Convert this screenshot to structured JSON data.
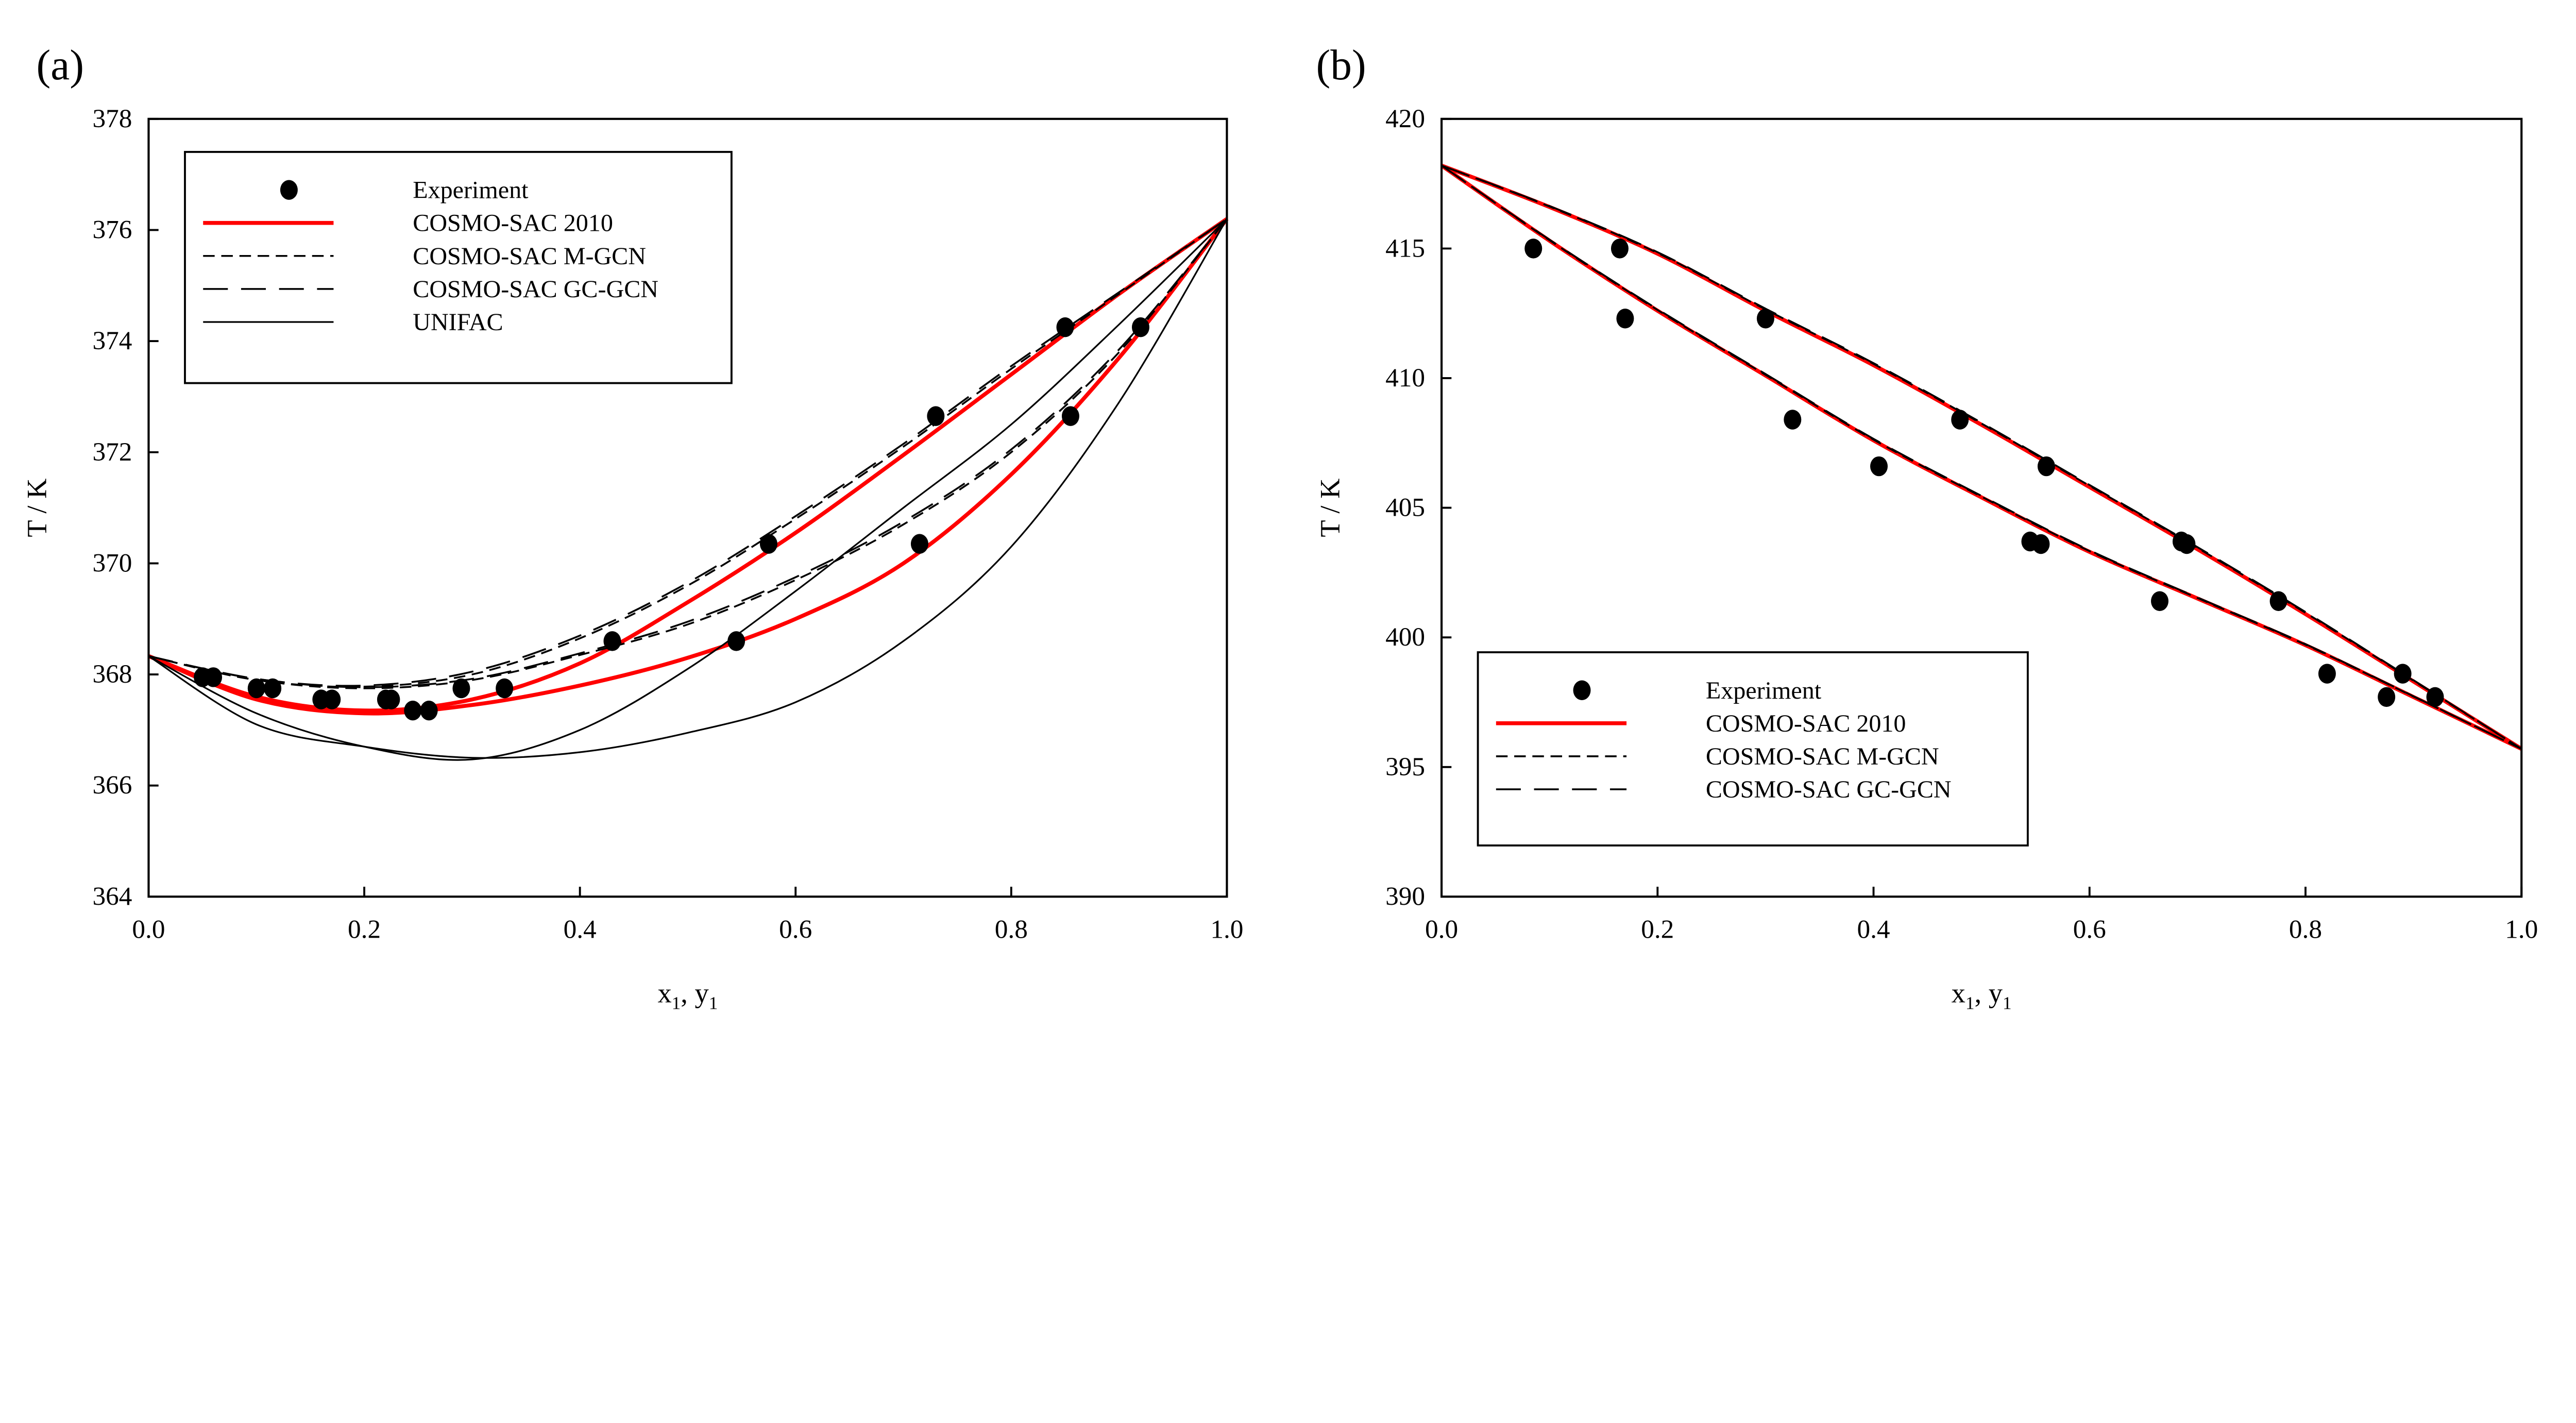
{
  "chart_data": [
    {
      "panel_label": "(a)",
      "type": "line",
      "xlabel": {
        "main": "x",
        "sub": "1",
        "mid": ", y",
        "sub2": "1"
      },
      "ylabel": "T / K",
      "xlim": [
        0,
        1.0
      ],
      "ylim": [
        364,
        378
      ],
      "xticks": [
        "0.0",
        "0.2",
        "0.4",
        "0.6",
        "0.8",
        "1.0"
      ],
      "yticks": [
        "364",
        "366",
        "368",
        "370",
        "372",
        "374",
        "376",
        "378"
      ],
      "grid": false,
      "legend_placement": "top-left",
      "experiment": {
        "name": "Experiment",
        "points": [
          [
            0.05,
            367.95
          ],
          [
            0.06,
            367.95
          ],
          [
            0.1,
            367.75
          ],
          [
            0.115,
            367.75
          ],
          [
            0.16,
            367.55
          ],
          [
            0.17,
            367.55
          ],
          [
            0.22,
            367.55
          ],
          [
            0.225,
            367.55
          ],
          [
            0.245,
            367.35
          ],
          [
            0.26,
            367.35
          ],
          [
            0.29,
            367.75
          ],
          [
            0.33,
            367.75
          ],
          [
            0.43,
            368.6
          ],
          [
            0.545,
            368.6
          ],
          [
            0.575,
            370.35
          ],
          [
            0.715,
            370.35
          ],
          [
            0.73,
            372.65
          ],
          [
            0.855,
            372.65
          ],
          [
            0.85,
            374.25
          ],
          [
            0.92,
            374.25
          ]
        ]
      },
      "series": [
        {
          "name": "COSMO-SAC 2010",
          "style": "red-solid",
          "color": "#ff0000",
          "x": [
            0,
            0.1,
            0.2,
            0.3,
            0.4,
            0.5,
            0.6,
            0.7,
            0.8,
            0.9,
            1.0
          ],
          "curves": [
            [
              368.33,
              367.6,
              367.35,
              367.55,
              368.2,
              369.3,
              370.55,
              371.95,
              373.4,
              374.85,
              376.2
            ],
            [
              368.33,
              367.55,
              367.3,
              367.45,
              367.8,
              368.3,
              369.0,
              370.0,
              371.6,
              373.7,
              376.2
            ]
          ]
        },
        {
          "name": "COSMO-SAC M-GCN",
          "style": "short-dash",
          "color": "#000000",
          "x": [
            0,
            0.1,
            0.2,
            0.3,
            0.4,
            0.5,
            0.6,
            0.7,
            0.8,
            0.9,
            1.0
          ],
          "curves": [
            [
              368.33,
              367.9,
              367.78,
              368.0,
              368.65,
              369.6,
              370.8,
              372.1,
              373.5,
              374.85,
              376.2
            ],
            [
              368.33,
              367.9,
              367.75,
              367.9,
              368.35,
              368.9,
              369.7,
              370.7,
              372.0,
              373.8,
              376.2
            ]
          ]
        },
        {
          "name": "COSMO-SAC GC-GCN",
          "style": "long-dash",
          "color": "#000000",
          "x": [
            0,
            0.1,
            0.2,
            0.3,
            0.4,
            0.5,
            0.6,
            0.7,
            0.8,
            0.9,
            1.0
          ],
          "curves": [
            [
              368.33,
              367.92,
              367.8,
              368.05,
              368.7,
              369.65,
              370.85,
              372.15,
              373.55,
              374.88,
              376.2
            ],
            [
              368.33,
              367.92,
              367.77,
              367.92,
              368.38,
              368.95,
              369.75,
              370.75,
              372.05,
              373.85,
              376.2
            ]
          ]
        },
        {
          "name": "UNIFAC",
          "style": "thin-solid",
          "color": "#000000",
          "x": [
            0,
            0.1,
            0.2,
            0.3,
            0.4,
            0.5,
            0.6,
            0.7,
            0.8,
            0.9,
            1.0
          ],
          "curves": [
            [
              368.33,
              367.3,
              366.7,
              366.47,
              367.0,
              368.1,
              369.5,
              371.0,
              372.5,
              374.3,
              376.2
            ],
            [
              368.33,
              367.1,
              366.7,
              366.5,
              366.6,
              366.95,
              367.5,
              368.6,
              370.3,
              372.9,
              376.2
            ]
          ]
        }
      ]
    },
    {
      "panel_label": "(b)",
      "type": "line",
      "xlabel": {
        "main": "x",
        "sub": "1",
        "mid": ", y",
        "sub2": "1"
      },
      "ylabel": "T / K",
      "xlim": [
        0,
        1.0
      ],
      "ylim": [
        390,
        420
      ],
      "xticks": [
        "0.0",
        "0.2",
        "0.4",
        "0.6",
        "0.8",
        "1.0"
      ],
      "yticks": [
        "390",
        "395",
        "400",
        "405",
        "410",
        "415",
        "420"
      ],
      "grid": false,
      "legend_placement": "bottom-left",
      "experiment": {
        "name": "Experiment",
        "points": [
          [
            0.085,
            415.0
          ],
          [
            0.165,
            415.0
          ],
          [
            0.17,
            412.3
          ],
          [
            0.3,
            412.3
          ],
          [
            0.325,
            408.4
          ],
          [
            0.48,
            408.4
          ],
          [
            0.405,
            406.6
          ],
          [
            0.56,
            406.6
          ],
          [
            0.545,
            403.7
          ],
          [
            0.555,
            403.6
          ],
          [
            0.685,
            403.7
          ],
          [
            0.69,
            403.6
          ],
          [
            0.665,
            401.4
          ],
          [
            0.775,
            401.4
          ],
          [
            0.82,
            398.6
          ],
          [
            0.89,
            398.6
          ],
          [
            0.875,
            397.7
          ],
          [
            0.92,
            397.7
          ]
        ]
      },
      "series": [
        {
          "name": "COSMO-SAC 2010",
          "style": "red-solid",
          "color": "#ff0000",
          "x": [
            0,
            0.1,
            0.2,
            0.3,
            0.4,
            0.5,
            0.6,
            0.7,
            0.8,
            0.9,
            1.0
          ],
          "curves": [
            [
              418.2,
              416.6,
              414.8,
              412.6,
              410.5,
              408.2,
              405.8,
              403.4,
              400.9,
              398.3,
              395.7
            ],
            [
              418.2,
              415.3,
              412.6,
              410.1,
              407.6,
              405.4,
              403.3,
              401.5,
              399.7,
              397.7,
              395.7
            ]
          ]
        },
        {
          "name": "COSMO-SAC M-GCN",
          "style": "short-dash",
          "color": "#000000",
          "x": [
            0,
            0.1,
            0.2,
            0.3,
            0.4,
            0.5,
            0.6,
            0.7,
            0.8,
            0.9,
            1.0
          ],
          "curves": [
            [
              418.2,
              416.62,
              414.83,
              412.65,
              410.55,
              408.25,
              405.85,
              403.45,
              400.95,
              398.33,
              395.7
            ],
            [
              418.2,
              415.32,
              412.63,
              410.13,
              407.63,
              405.43,
              403.33,
              401.52,
              399.72,
              397.72,
              395.7
            ]
          ]
        },
        {
          "name": "COSMO-SAC GC-GCN",
          "style": "long-dash",
          "color": "#000000",
          "x": [
            0,
            0.1,
            0.2,
            0.3,
            0.4,
            0.5,
            0.6,
            0.7,
            0.8,
            0.9,
            1.0
          ],
          "curves": [
            [
              418.2,
              416.64,
              414.86,
              412.68,
              410.58,
              408.28,
              405.88,
              403.48,
              400.98,
              398.35,
              395.7
            ],
            [
              418.2,
              415.34,
              412.66,
              410.16,
              407.66,
              405.46,
              403.36,
              401.54,
              399.74,
              397.73,
              395.7
            ]
          ]
        }
      ]
    }
  ]
}
